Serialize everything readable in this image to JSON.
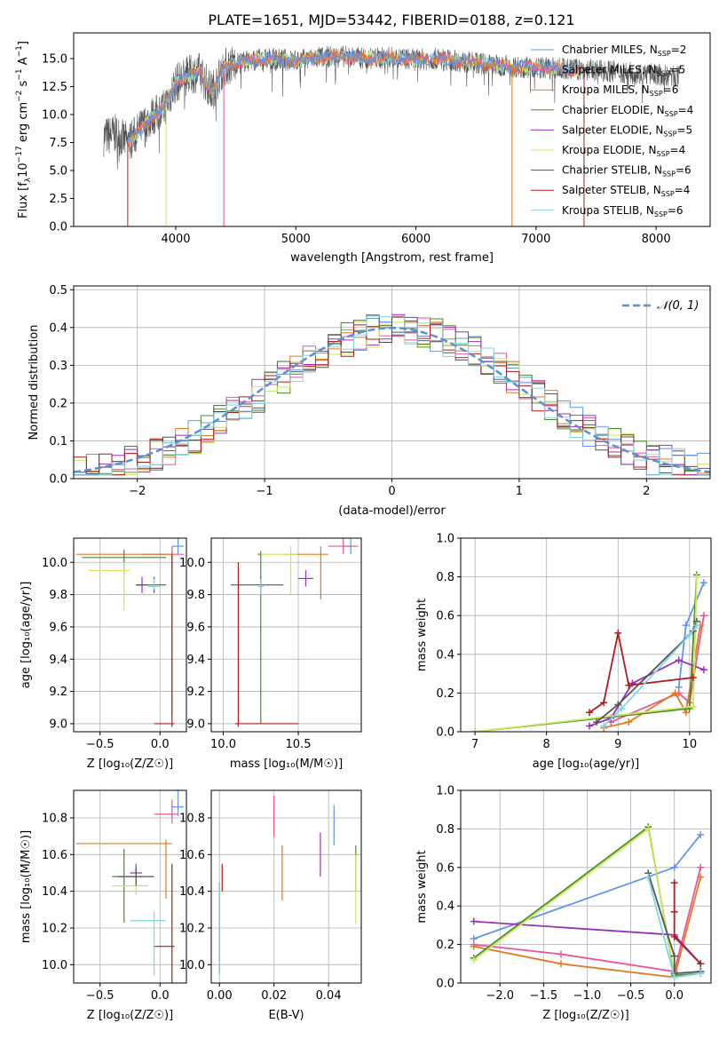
{
  "title": "PLATE=1651, MJD=53442, FIBERID=0188, z=0.121",
  "colors": {
    "chabrier_miles": "#6495ed",
    "salpeter_miles": "#e7559a",
    "kroupa_miles": "#e07a1f",
    "chabrier_elodie": "#4d8a2e",
    "salpeter_elodie": "#9b30b8",
    "kroupa_elodie": "#c9e85a",
    "chabrier_stelib": "#555555",
    "salpeter_stelib": "#b01c1c",
    "kroupa_stelib": "#7fd6e6",
    "normal": "#5b8fd8"
  },
  "chart_data": [
    {
      "type": "line",
      "name": "spectrum",
      "xlabel": "wavelength [Angstrom, rest frame]",
      "ylabel": "Flux [f_λ 10^-17 erg cm^-2 s^-1 A^-1]",
      "xlim": [
        3150,
        8450
      ],
      "ylim": [
        0,
        17.3
      ],
      "xticks": [
        "4000",
        "5000",
        "6000",
        "7000",
        "8000"
      ],
      "yticks": [
        "0.0",
        "2.5",
        "5.0",
        "7.5",
        "10.0",
        "12.5",
        "15.0"
      ],
      "legend_position": "right",
      "legend": [
        {
          "label": "Chabrier MILES, N",
          "sub": "SSP",
          "tail": "=2",
          "color": "chabrier_miles"
        },
        {
          "label": "Salpeter MILES, N",
          "sub": "SSP",
          "tail": "=5",
          "color": "salpeter_miles"
        },
        {
          "label": "Kroupa MILES, N",
          "sub": "SSP",
          "tail": "=6",
          "color": "kroupa_miles"
        },
        {
          "label": "Chabrier ELODIE, N",
          "sub": "SSP",
          "tail": "=4",
          "color": "chabrier_elodie"
        },
        {
          "label": "Salpeter ELODIE, N",
          "sub": "SSP",
          "tail": "=5",
          "color": "salpeter_elodie"
        },
        {
          "label": "Kroupa ELODIE, N",
          "sub": "SSP",
          "tail": "=4",
          "color": "kroupa_elodie"
        },
        {
          "label": "Chabrier STELIB, N",
          "sub": "SSP",
          "tail": "=6",
          "color": "chabrier_stelib"
        },
        {
          "label": "Salpeter STELIB, N",
          "sub": "SSP",
          "tail": "=4",
          "color": "salpeter_stelib"
        },
        {
          "label": "Kroupa STELIB, N",
          "sub": "SSP",
          "tail": "=6",
          "color": "kroupa_stelib"
        }
      ],
      "data_trend": {
        "x": [
          3400,
          3500,
          3600,
          3700,
          3800,
          3900,
          4000,
          4100,
          4200,
          4300,
          4400,
          4500,
          4600,
          4800,
          5000,
          5200,
          5400,
          5600,
          5800,
          6000,
          6200,
          6400,
          6600,
          6800,
          7000,
          7200,
          7400,
          7600,
          7800,
          8000,
          8200
        ],
        "y": [
          8.0,
          8.3,
          7.5,
          8.6,
          9.8,
          10.5,
          12.8,
          13.5,
          13.8,
          12.0,
          14.2,
          14.6,
          14.8,
          15.0,
          14.8,
          15.1,
          15.2,
          15.0,
          15.1,
          14.9,
          15.0,
          14.7,
          14.5,
          14.3,
          14.2,
          14.1,
          14.0,
          13.9,
          13.7,
          13.6,
          13.3
        ]
      },
      "data_wave_range": [
        3400,
        8200
      ],
      "model_wave_range": [
        3600,
        7400
      ],
      "model_edges": [
        {
          "x": 3600,
          "color": "salpeter_stelib"
        },
        {
          "x": 3920,
          "color": "kroupa_elodie"
        },
        {
          "x": 4400,
          "color": "salpeter_miles"
        },
        {
          "x": 6800,
          "color": "kroupa_miles"
        },
        {
          "x": 7400,
          "color": "salpeter_stelib"
        }
      ]
    },
    {
      "type": "histogram",
      "name": "residuals",
      "xlabel": "(data-model)/error",
      "ylabel": "Normed distribution",
      "xlim": [
        -2.5,
        2.5
      ],
      "ylim": [
        0,
        0.51
      ],
      "xticks": [
        "−2",
        "−1",
        "0",
        "1",
        "2"
      ],
      "yticks": [
        "0.0",
        "0.1",
        "0.2",
        "0.3",
        "0.4",
        "0.5"
      ],
      "legend": "𝒩(0, 1)",
      "bin_width": 0.1,
      "series_order": [
        "chabrier_miles",
        "salpeter_miles",
        "kroupa_miles",
        "chabrier_elodie",
        "salpeter_elodie",
        "kroupa_elodie",
        "chabrier_stelib",
        "salpeter_stelib",
        "kroupa_stelib"
      ]
    },
    {
      "type": "errorbar",
      "name": "age-vs-z",
      "xlabel": "Z [log₁₀(Z/Z☉)]",
      "ylabel": "age  [log₁₀(age/yr)]",
      "xlim": [
        -0.72,
        0.22
      ],
      "ylim": [
        8.95,
        10.15
      ],
      "xticks": [
        "−0.5",
        "0.0"
      ],
      "yticks": [
        "9.0",
        "9.2",
        "9.4",
        "9.6",
        "9.8",
        "10.0"
      ],
      "points": [
        {
          "color": "chabrier_miles",
          "x": 0.15,
          "xerr": [
            0.05,
            0.05
          ],
          "y": 10.1,
          "yerr": [
            0.05,
            0.05
          ]
        },
        {
          "color": "salpeter_miles",
          "x": 0.1,
          "xerr": [
            0.25,
            0.1
          ],
          "y": 10.05,
          "yerr": [
            0.1,
            0.05
          ]
        },
        {
          "color": "kroupa_miles",
          "x": 0.1,
          "xerr": [
            0.8,
            0.02
          ],
          "y": 10.05,
          "yerr": [
            1.0,
            0.02
          ]
        },
        {
          "color": "chabrier_elodie",
          "x": -0.3,
          "xerr": [
            0.35,
            0.35
          ],
          "y": 10.03,
          "yerr": [
            0.1,
            0.05
          ]
        },
        {
          "color": "salpeter_elodie",
          "x": -0.15,
          "xerr": [
            0.05,
            0.05
          ],
          "y": 9.86,
          "yerr": [
            0.05,
            0.05
          ]
        },
        {
          "color": "kroupa_elodie",
          "x": -0.3,
          "xerr": [
            0.3,
            0.05
          ],
          "y": 9.95,
          "yerr": [
            0.25,
            0.05
          ]
        },
        {
          "color": "chabrier_stelib",
          "x": -0.05,
          "xerr": [
            0.15,
            0.1
          ],
          "y": 9.86,
          "yerr": [
            0.05,
            0.05
          ]
        },
        {
          "color": "salpeter_stelib",
          "x": 0.1,
          "xerr": [
            0.15,
            0.02
          ],
          "y": 9.0,
          "yerr": [
            0.02,
            1.05
          ]
        },
        {
          "color": "kroupa_stelib",
          "x": -0.05,
          "xerr": [
            0.05,
            0.05
          ],
          "y": 9.85,
          "yerr": [
            0.02,
            0.05
          ]
        }
      ]
    },
    {
      "type": "errorbar",
      "name": "age-vs-mass",
      "xlabel": "mass [log₁₀(M/M☉)]",
      "ylabel": "",
      "xlim": [
        9.92,
        10.92
      ],
      "ylim": [
        8.95,
        10.15
      ],
      "xticks": [
        "10.0",
        "10.5"
      ],
      "yticks": [
        "9.0",
        "9.2",
        "9.4",
        "9.6",
        "9.8",
        "10.0"
      ],
      "points": [
        {
          "color": "chabrier_miles",
          "x": 10.85,
          "xerr": [
            0.05,
            0.03
          ],
          "y": 10.1,
          "yerr": [
            0.05,
            0.05
          ]
        },
        {
          "color": "salpeter_miles",
          "x": 10.8,
          "xerr": [
            0.1,
            0.1
          ],
          "y": 10.1,
          "yerr": [
            0.05,
            0.05
          ]
        },
        {
          "color": "kroupa_miles",
          "x": 10.65,
          "xerr": [
            0.25,
            0.05
          ],
          "y": 10.05,
          "yerr": [
            0.28,
            0.05
          ]
        },
        {
          "color": "chabrier_elodie",
          "x": 10.25,
          "xerr": [
            0.02,
            0.02
          ],
          "y": 10.05,
          "yerr": [
            1.05,
            0.02
          ]
        },
        {
          "color": "salpeter_elodie",
          "x": 10.55,
          "xerr": [
            0.05,
            0.05
          ],
          "y": 9.9,
          "yerr": [
            0.05,
            0.05
          ]
        },
        {
          "color": "kroupa_elodie",
          "x": 10.45,
          "xerr": [
            0.2,
            0.05
          ],
          "y": 10.05,
          "yerr": [
            0.25,
            0.05
          ]
        },
        {
          "color": "chabrier_stelib",
          "x": 10.25,
          "xerr": [
            0.2,
            0.15
          ],
          "y": 9.86,
          "yerr": [
            0.05,
            0.05
          ]
        },
        {
          "color": "salpeter_stelib",
          "x": 10.1,
          "xerr": [
            0.02,
            0.4
          ],
          "y": 9.0,
          "yerr": [
            0.02,
            1.0
          ]
        },
        {
          "color": "kroupa_stelib",
          "x": 10.25,
          "xerr": [
            0.02,
            0.02
          ],
          "y": 9.85,
          "yerr": [
            0.05,
            0.05
          ]
        }
      ]
    },
    {
      "type": "line",
      "name": "weight-vs-age",
      "xlabel": "age  [log₁₀(age/yr)]",
      "ylabel": "mass weight",
      "xlim": [
        6.8,
        10.3
      ],
      "ylim": [
        0,
        1.0
      ],
      "xticks": [
        "7",
        "8",
        "9",
        "10"
      ],
      "yticks": [
        "0.0",
        "0.2",
        "0.4",
        "0.6",
        "0.8",
        "1.0"
      ],
      "series": [
        {
          "color": "chabrier_miles",
          "x": [
            9.85,
            9.95,
            10.2
          ],
          "y": [
            0.23,
            0.55,
            0.77
          ]
        },
        {
          "color": "salpeter_miles",
          "x": [
            8.9,
            9.85,
            10.0,
            10.2
          ],
          "y": [
            0.05,
            0.2,
            0.15,
            0.6
          ]
        },
        {
          "color": "kroupa_miles",
          "x": [
            8.8,
            9.15,
            9.8,
            9.95,
            10.15
          ],
          "y": [
            0.02,
            0.05,
            0.2,
            0.1,
            0.55
          ]
        },
        {
          "color": "chabrier_elodie",
          "x": [
            7.0,
            10.0,
            10.1
          ],
          "y": [
            0.0,
            0.12,
            0.81
          ]
        },
        {
          "color": "salpeter_elodie",
          "x": [
            8.6,
            8.9,
            9.2,
            9.85,
            10.2
          ],
          "y": [
            0.03,
            0.07,
            0.25,
            0.37,
            0.32
          ]
        },
        {
          "color": "kroupa_elodie",
          "x": [
            7.0,
            10.05,
            10.1
          ],
          "y": [
            0.0,
            0.13,
            0.8
          ]
        },
        {
          "color": "chabrier_stelib",
          "x": [
            8.7,
            9.0,
            10.05,
            10.1
          ],
          "y": [
            0.05,
            0.14,
            0.52,
            0.57
          ]
        },
        {
          "color": "salpeter_stelib",
          "x": [
            8.6,
            8.8,
            9.0,
            9.15,
            10.05
          ],
          "y": [
            0.1,
            0.15,
            0.51,
            0.24,
            0.28
          ]
        },
        {
          "color": "kroupa_stelib",
          "x": [
            8.8,
            9.05,
            10.0,
            10.1
          ],
          "y": [
            0.03,
            0.12,
            0.5,
            0.55
          ]
        }
      ]
    },
    {
      "type": "errorbar",
      "name": "mass-vs-z",
      "xlabel": "Z [log₁₀(Z/Z☉)]",
      "ylabel": "mass [log₁₀(M/M☉)]",
      "xlim": [
        -0.72,
        0.22
      ],
      "ylim": [
        9.9,
        10.95
      ],
      "xticks": [
        "−0.5",
        "0.0"
      ],
      "yticks": [
        "10.0",
        "10.2",
        "10.4",
        "10.6",
        "10.8"
      ],
      "points": [
        {
          "color": "chabrier_miles",
          "x": 0.15,
          "xerr": [
            0.05,
            0.05
          ],
          "y": 10.86,
          "yerr": [
            0.05,
            0.2
          ]
        },
        {
          "color": "salpeter_miles",
          "x": 0.1,
          "xerr": [
            0.15,
            0.05
          ],
          "y": 10.82,
          "yerr": [
            0.05,
            0.08
          ]
        },
        {
          "color": "kroupa_miles",
          "x": 0.05,
          "xerr": [
            0.75,
            0.05
          ],
          "y": 10.66,
          "yerr": [
            0.3,
            0.02
          ]
        },
        {
          "color": "chabrier_elodie",
          "x": -0.3,
          "xerr": [
            0.1,
            0.15
          ],
          "y": 10.48,
          "yerr": [
            0.25,
            0.15
          ]
        },
        {
          "color": "salpeter_elodie",
          "x": -0.2,
          "xerr": [
            0.05,
            0.05
          ],
          "y": 10.5,
          "yerr": [
            0.05,
            0.05
          ]
        },
        {
          "color": "kroupa_elodie",
          "x": -0.2,
          "xerr": [
            0.2,
            0.1
          ],
          "y": 10.43,
          "yerr": [
            0.05,
            0.05
          ]
        },
        {
          "color": "chabrier_stelib",
          "x": -0.2,
          "xerr": [
            0.15,
            0.15
          ],
          "y": 10.48,
          "yerr": [
            0.05,
            0.05
          ]
        },
        {
          "color": "salpeter_stelib",
          "x": 0.1,
          "xerr": [
            0.15,
            0.02
          ],
          "y": 10.1,
          "yerr": [
            0.3,
            0.45
          ]
        },
        {
          "color": "kroupa_stelib",
          "x": -0.05,
          "xerr": [
            0.2,
            0.1
          ],
          "y": 10.24,
          "yerr": [
            0.3,
            0.05
          ]
        }
      ]
    },
    {
      "type": "errorbar",
      "name": "mass-vs-ebv",
      "xlabel": "E(B-V)",
      "ylabel": "",
      "xlim": [
        -0.003,
        0.052
      ],
      "ylim": [
        9.9,
        10.95
      ],
      "xticks": [
        "0.00",
        "0.02",
        "0.04"
      ],
      "yticks": [
        "10.0",
        "10.2",
        "10.4",
        "10.6",
        "10.8"
      ],
      "points": [
        {
          "color": "chabrier_miles",
          "x": 0.042,
          "y": 10.75,
          "yerr": [
            0.1,
            0.12
          ]
        },
        {
          "color": "salpeter_miles",
          "x": 0.02,
          "y": 10.8,
          "yerr": [
            0.1,
            0.12
          ]
        },
        {
          "color": "kroupa_miles",
          "x": 0.023,
          "y": 10.5,
          "yerr": [
            0.15,
            0.15
          ]
        },
        {
          "color": "chabrier_elodie",
          "x": 0.05,
          "y": 10.5,
          "yerr": [
            0.1,
            0.15
          ]
        },
        {
          "color": "salpeter_elodie",
          "x": 0.037,
          "y": 10.6,
          "yerr": [
            0.12,
            0.12
          ]
        },
        {
          "color": "kroupa_elodie",
          "x": 0.05,
          "y": 10.4,
          "yerr": [
            0.18,
            0.2
          ]
        },
        {
          "color": "chabrier_stelib",
          "x": 0.0,
          "y": 10.2,
          "yerr": [
            0.25,
            0.25
          ]
        },
        {
          "color": "salpeter_stelib",
          "x": 0.001,
          "y": 10.45,
          "yerr": [
            0.05,
            0.1
          ]
        },
        {
          "color": "kroupa_stelib",
          "x": 0.0,
          "y": 10.2,
          "yerr": [
            0.25,
            0.25
          ]
        }
      ]
    },
    {
      "type": "line",
      "name": "weight-vs-z",
      "xlabel": "Z [log₁₀(Z/Z☉)]",
      "ylabel": "mass weight",
      "xlim": [
        -2.45,
        0.42
      ],
      "ylim": [
        0,
        1.0
      ],
      "xticks": [
        "−2.0",
        "−1.5",
        "−1.0",
        "−0.5",
        "0.0"
      ],
      "yticks": [
        "0.0",
        "0.2",
        "0.4",
        "0.6",
        "0.8",
        "1.0"
      ],
      "series": [
        {
          "color": "chabrier_miles",
          "x": [
            -2.3,
            0.0,
            0.3
          ],
          "y": [
            0.23,
            0.6,
            0.77
          ]
        },
        {
          "color": "salpeter_miles",
          "x": [
            -2.3,
            -1.3,
            0.0,
            0.3
          ],
          "y": [
            0.2,
            0.15,
            0.06,
            0.6
          ]
        },
        {
          "color": "kroupa_miles",
          "x": [
            -2.3,
            -1.3,
            0.0,
            0.3
          ],
          "y": [
            0.19,
            0.1,
            0.03,
            0.55
          ]
        },
        {
          "color": "chabrier_elodie",
          "x": [
            -2.3,
            -0.3,
            0.0,
            0.3
          ],
          "y": [
            0.13,
            0.81,
            0.04,
            0.05
          ]
        },
        {
          "color": "salpeter_elodie",
          "x": [
            -2.3,
            0.0,
            0.3
          ],
          "y": [
            0.32,
            0.25,
            0.1
          ]
        },
        {
          "color": "kroupa_elodie",
          "x": [
            -2.3,
            -0.3,
            0.0
          ],
          "y": [
            0.12,
            0.8,
            0.05
          ]
        },
        {
          "color": "chabrier_stelib",
          "x": [
            -0.3,
            0.0,
            0.0,
            0.3
          ],
          "y": [
            0.57,
            0.14,
            0.05,
            0.06
          ]
        },
        {
          "color": "salpeter_stelib",
          "x": [
            0.0,
            0.0,
            0.0,
            0.3
          ],
          "y": [
            0.52,
            0.37,
            0.24,
            0.1
          ]
        },
        {
          "color": "kroupa_stelib",
          "x": [
            -0.3,
            0.0,
            0.3
          ],
          "y": [
            0.55,
            0.03,
            0.05
          ]
        }
      ]
    }
  ]
}
